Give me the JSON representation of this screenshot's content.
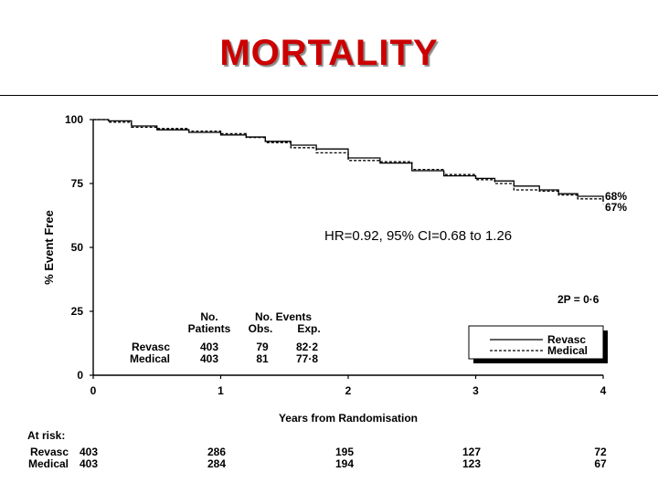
{
  "slide": {
    "title": "MORTALITY"
  },
  "chart_data": {
    "type": "line",
    "title": "",
    "xlabel": "Years from Randomisation",
    "ylabel": "% Event Free",
    "xlim": [
      0,
      4
    ],
    "ylim": [
      0,
      100
    ],
    "x_ticks": [
      "0",
      "1",
      "2",
      "3",
      "4"
    ],
    "y_ticks": [
      "0",
      "25",
      "50",
      "75",
      "100"
    ],
    "grid": false,
    "legend_position": "bottom-right",
    "annotation_hr": "HR=0.92, 95% CI=0.68 to 1.26",
    "annotation_p": "2P = 0·6",
    "end_labels": [
      "68%",
      "67%"
    ],
    "series": [
      {
        "name": "Revasc",
        "line_style": "solid",
        "points": [
          [
            0,
            100
          ],
          [
            0.12,
            99.5
          ],
          [
            0.3,
            97.5
          ],
          [
            0.5,
            96
          ],
          [
            0.75,
            95
          ],
          [
            1.0,
            94
          ],
          [
            1.2,
            93.2
          ],
          [
            1.35,
            91.5
          ],
          [
            1.55,
            90
          ],
          [
            1.75,
            88.5
          ],
          [
            2.0,
            85
          ],
          [
            2.25,
            83
          ],
          [
            2.5,
            80
          ],
          [
            2.75,
            78
          ],
          [
            3.0,
            77
          ],
          [
            3.15,
            76
          ],
          [
            3.3,
            74
          ],
          [
            3.5,
            72.5
          ],
          [
            3.65,
            71
          ],
          [
            3.8,
            70
          ],
          [
            4.0,
            68
          ]
        ]
      },
      {
        "name": "Medical",
        "line_style": "dashed",
        "points": [
          [
            0,
            100
          ],
          [
            0.12,
            99
          ],
          [
            0.3,
            97
          ],
          [
            0.5,
            96.5
          ],
          [
            0.75,
            95.5
          ],
          [
            1.0,
            94.5
          ],
          [
            1.2,
            93
          ],
          [
            1.35,
            91
          ],
          [
            1.55,
            89
          ],
          [
            1.75,
            87
          ],
          [
            2.0,
            84
          ],
          [
            2.25,
            83.5
          ],
          [
            2.5,
            80.5
          ],
          [
            2.75,
            78.5
          ],
          [
            3.0,
            76.5
          ],
          [
            3.15,
            75
          ],
          [
            3.3,
            72.5
          ],
          [
            3.5,
            72
          ],
          [
            3.65,
            70.5
          ],
          [
            3.8,
            69
          ],
          [
            4.0,
            67
          ]
        ]
      }
    ],
    "table": {
      "col_patients_header": [
        "No.",
        "Patients"
      ],
      "col_events_header": [
        "No. Events",
        "Obs.",
        "Exp."
      ],
      "rows": [
        {
          "group": "Revasc",
          "patients": "403",
          "obs": "79",
          "exp": "82·2"
        },
        {
          "group": "Medical",
          "patients": "403",
          "obs": "81",
          "exp": "77·8"
        }
      ]
    },
    "at_risk": {
      "label": "At risk:",
      "rows": [
        {
          "group": "Revasc",
          "values": [
            "403",
            "286",
            "195",
            "127",
            "72"
          ]
        },
        {
          "group": "Medical",
          "values": [
            "403",
            "284",
            "194",
            "123",
            "67"
          ]
        }
      ]
    }
  }
}
